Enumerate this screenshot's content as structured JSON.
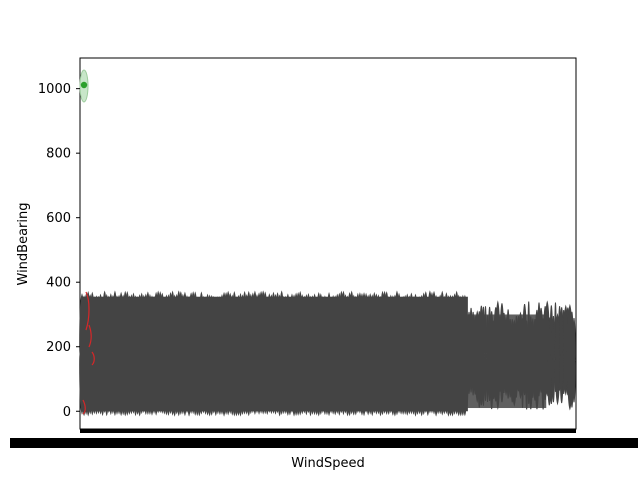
{
  "chart_data": {
    "type": "violin",
    "title": "",
    "xlabel": "WindSpeed",
    "ylabel": "WindBearing",
    "ylim": [
      -55,
      1095
    ],
    "yticks": [
      0,
      200,
      400,
      600,
      800,
      1000
    ],
    "grid": false,
    "legend": "none",
    "x_tick_labels_note": "Hundreds of overlapping, illegible category tick labels; rendered as a solid black band.",
    "colors": {
      "violin_body": "#444444",
      "accent_red": "#d62728",
      "accent_green": "#2ca02c",
      "outlier_fill": "#c8e6c9"
    },
    "series": [
      {
        "category_group": "low wind speeds (leftmost)",
        "bearing_range": [
          -10,
          370
        ],
        "notes": "dense overlapping violins spanning 0–360 degrees"
      },
      {
        "category_group": "high wind speeds (rightmost)",
        "bearing_range": [
          10,
          340
        ],
        "notes": "thinner, sparser violins"
      },
      {
        "category_group": "outlier near x=0",
        "bearing_range": [
          970,
          1070
        ],
        "median": 1015,
        "color": "#2ca02c"
      }
    ]
  }
}
